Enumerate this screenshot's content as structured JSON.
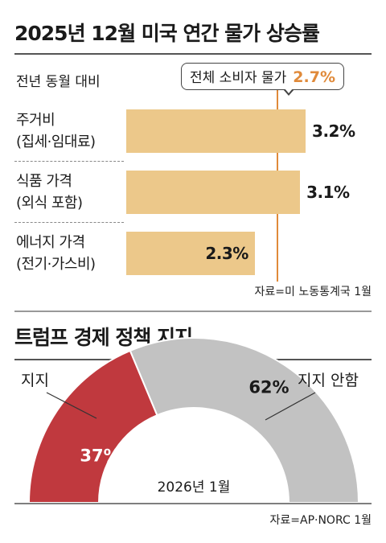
{
  "top": {
    "title": "2025년 12월 미국 연간 물가 상승률",
    "subtitle": "전년 동월 대비",
    "callout_label": "전체 소비자 물가",
    "callout_value": "2.7%",
    "source": "자료=미 노동통계국 1월"
  },
  "bottom": {
    "title": "트럼프 경제 정책 지지",
    "label_support": "지지",
    "label_oppose": "지지 안함",
    "date": "2026년 1월",
    "source": "자료=AP·NORC 1월"
  },
  "colors": {
    "bar": "#ecc88a",
    "accent": "#e08a3a",
    "support": "#c0393e",
    "oppose": "#c2c2c2"
  },
  "chart_data": [
    {
      "type": "bar",
      "orientation": "horizontal",
      "title": "2025년 12월 미국 연간 물가 상승률",
      "subtitle": "전년 동월 대비",
      "categories": [
        [
          "주거비",
          "(집세·임대료)"
        ],
        [
          "식품 가격",
          "(외식 포함)"
        ],
        [
          "에너지 가격",
          "(전기·가스비)"
        ]
      ],
      "values": [
        3.2,
        3.1,
        2.3
      ],
      "value_labels": [
        "3.2%",
        "3.1%",
        "2.3%"
      ],
      "reference_line": {
        "label": "전체 소비자 물가",
        "value": 2.7,
        "value_label": "2.7%"
      },
      "xlim": [
        0,
        3.4
      ]
    },
    {
      "type": "pie",
      "variant": "half-donut",
      "title": "트럼프 경제 정책 지지",
      "categories": [
        "지지",
        "지지 안함"
      ],
      "values": [
        37,
        62
      ],
      "value_labels": [
        "37%",
        "62%"
      ],
      "center_label": "2026년 1월"
    }
  ]
}
